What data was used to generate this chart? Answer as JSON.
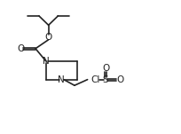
{
  "background": "#ffffff",
  "line_color": "#222222",
  "lw": 1.2,
  "font_size": 7.0,
  "xlim": [
    0,
    10.5
  ],
  "ylim": [
    0,
    8
  ],
  "figsize": [
    2.05,
    1.51
  ],
  "dpi": 100
}
